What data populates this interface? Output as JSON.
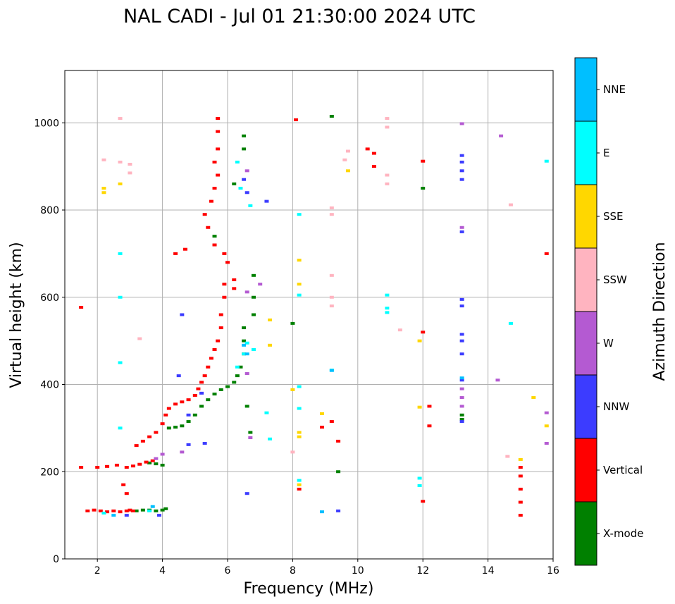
{
  "chart_data": {
    "type": "scatter",
    "title": "NAL CADI - Jul 01 21:30:00 2024 UTC",
    "xlabel": "Frequency (MHz)",
    "ylabel": "Virtual height (km)",
    "xlim": [
      1,
      16
    ],
    "ylim": [
      0,
      1120
    ],
    "xticks": [
      2,
      4,
      6,
      8,
      10,
      12,
      14,
      16
    ],
    "yticks": [
      0,
      200,
      400,
      600,
      800,
      1000
    ],
    "grid": true,
    "colorbar": {
      "label": "Azimuth Direction",
      "categories": [
        {
          "name": "X-mode",
          "color": "#008000"
        },
        {
          "name": "Vertical",
          "color": "#ff0000"
        },
        {
          "name": "NNW",
          "color": "#3c3cff"
        },
        {
          "name": "W",
          "color": "#b45ad2"
        },
        {
          "name": "SSW",
          "color": "#ffb4c0"
        },
        {
          "name": "SSE",
          "color": "#ffd700"
        },
        {
          "name": "E",
          "color": "#00ffff"
        },
        {
          "name": "NNE",
          "color": "#00bfff"
        }
      ]
    },
    "series": [
      {
        "name": "X-mode",
        "points": [
          [
            3.2,
            110
          ],
          [
            3.4,
            112
          ],
          [
            3.6,
            112
          ],
          [
            3.8,
            110
          ],
          [
            4.0,
            112
          ],
          [
            4.1,
            115
          ],
          [
            4.0,
            215
          ],
          [
            3.8,
            218
          ],
          [
            3.6,
            220
          ],
          [
            4.2,
            300
          ],
          [
            4.4,
            302
          ],
          [
            4.6,
            305
          ],
          [
            4.8,
            315
          ],
          [
            5.0,
            330
          ],
          [
            5.2,
            350
          ],
          [
            5.4,
            365
          ],
          [
            5.6,
            378
          ],
          [
            5.8,
            388
          ],
          [
            6.0,
            395
          ],
          [
            6.2,
            405
          ],
          [
            6.3,
            420
          ],
          [
            6.4,
            440
          ],
          [
            6.5,
            470
          ],
          [
            6.5,
            500
          ],
          [
            6.5,
            530
          ],
          [
            6.8,
            560
          ],
          [
            6.8,
            600
          ],
          [
            6.8,
            650
          ],
          [
            6.5,
            940
          ],
          [
            6.5,
            970
          ],
          [
            6.2,
            860
          ],
          [
            6.7,
            290
          ],
          [
            5.6,
            740
          ],
          [
            8.0,
            540
          ],
          [
            9.2,
            1015
          ],
          [
            9.4,
            200
          ],
          [
            12.0,
            850
          ],
          [
            13.2,
            320
          ],
          [
            13.2,
            330
          ],
          [
            6.6,
            350
          ]
        ]
      },
      {
        "name": "Vertical",
        "points": [
          [
            1.7,
            110
          ],
          [
            1.9,
            112
          ],
          [
            2.1,
            110
          ],
          [
            2.3,
            108
          ],
          [
            2.5,
            110
          ],
          [
            2.7,
            108
          ],
          [
            2.9,
            110
          ],
          [
            3.0,
            112
          ],
          [
            3.1,
            110
          ],
          [
            2.0,
            210
          ],
          [
            2.3,
            212
          ],
          [
            2.6,
            215
          ],
          [
            2.9,
            210
          ],
          [
            3.1,
            213
          ],
          [
            3.3,
            217
          ],
          [
            3.5,
            222
          ],
          [
            3.7,
            225
          ],
          [
            3.2,
            260
          ],
          [
            3.4,
            270
          ],
          [
            3.6,
            280
          ],
          [
            3.8,
            290
          ],
          [
            4.0,
            310
          ],
          [
            4.1,
            330
          ],
          [
            4.2,
            345
          ],
          [
            4.4,
            355
          ],
          [
            4.6,
            360
          ],
          [
            4.8,
            365
          ],
          [
            5.0,
            375
          ],
          [
            5.1,
            390
          ],
          [
            5.2,
            405
          ],
          [
            5.3,
            420
          ],
          [
            5.4,
            440
          ],
          [
            5.5,
            460
          ],
          [
            5.6,
            480
          ],
          [
            5.7,
            500
          ],
          [
            5.8,
            530
          ],
          [
            5.8,
            560
          ],
          [
            5.9,
            600
          ],
          [
            5.9,
            630
          ],
          [
            6.2,
            640
          ],
          [
            6.2,
            620
          ],
          [
            6.0,
            680
          ],
          [
            5.9,
            700
          ],
          [
            5.6,
            720
          ],
          [
            5.4,
            760
          ],
          [
            5.3,
            790
          ],
          [
            5.5,
            820
          ],
          [
            5.6,
            850
          ],
          [
            5.7,
            880
          ],
          [
            5.6,
            910
          ],
          [
            5.7,
            940
          ],
          [
            5.7,
            980
          ],
          [
            5.7,
            1010
          ],
          [
            4.7,
            710
          ],
          [
            4.4,
            700
          ],
          [
            10.5,
            900
          ],
          [
            10.5,
            930
          ],
          [
            10.3,
            940
          ],
          [
            8.1,
            1007
          ],
          [
            12.0,
            912
          ],
          [
            12.0,
            520
          ],
          [
            12.2,
            350
          ],
          [
            12.2,
            305
          ],
          [
            12.0,
            132
          ],
          [
            9.2,
            315
          ],
          [
            9.4,
            270
          ],
          [
            8.9,
            302
          ],
          [
            8.2,
            160
          ],
          [
            15.0,
            100
          ],
          [
            15.0,
            130
          ],
          [
            15.0,
            160
          ],
          [
            15.0,
            190
          ],
          [
            15.0,
            210
          ],
          [
            15.8,
            700
          ],
          [
            1.5,
            577
          ],
          [
            1.5,
            210
          ],
          [
            2.8,
            170
          ],
          [
            2.9,
            150
          ]
        ]
      },
      {
        "name": "NNW",
        "points": [
          [
            13.2,
            870
          ],
          [
            13.2,
            890
          ],
          [
            13.2,
            910
          ],
          [
            13.2,
            925
          ],
          [
            13.2,
            750
          ],
          [
            13.2,
            580
          ],
          [
            13.2,
            595
          ],
          [
            13.2,
            470
          ],
          [
            13.2,
            500
          ],
          [
            13.2,
            515
          ],
          [
            13.2,
            410
          ],
          [
            13.2,
            315
          ],
          [
            6.5,
            870
          ],
          [
            6.6,
            840
          ],
          [
            6.6,
            150
          ],
          [
            9.4,
            110
          ],
          [
            5.2,
            380
          ],
          [
            5.3,
            265
          ],
          [
            4.8,
            262
          ],
          [
            4.5,
            420
          ],
          [
            4.6,
            560
          ],
          [
            3.9,
            100
          ],
          [
            2.9,
            100
          ],
          [
            4.8,
            330
          ],
          [
            7.2,
            820
          ]
        ]
      },
      {
        "name": "W",
        "points": [
          [
            13.2,
            350
          ],
          [
            13.2,
            370
          ],
          [
            13.2,
            390
          ],
          [
            13.2,
            760
          ],
          [
            13.2,
            998
          ],
          [
            14.4,
            970
          ],
          [
            14.3,
            410
          ],
          [
            15.8,
            335
          ],
          [
            15.8,
            265
          ],
          [
            6.6,
            890
          ],
          [
            6.6,
            612
          ],
          [
            6.6,
            425
          ],
          [
            6.7,
            278
          ],
          [
            4.0,
            240
          ],
          [
            3.8,
            230
          ],
          [
            4.6,
            245
          ],
          [
            7.0,
            630
          ]
        ]
      },
      {
        "name": "SSW",
        "points": [
          [
            10.9,
            1010
          ],
          [
            10.9,
            990
          ],
          [
            10.9,
            880
          ],
          [
            10.9,
            860
          ],
          [
            14.7,
            812
          ],
          [
            14.6,
            235
          ],
          [
            9.2,
            805
          ],
          [
            9.2,
            790
          ],
          [
            9.2,
            650
          ],
          [
            9.2,
            600
          ],
          [
            9.2,
            580
          ],
          [
            9.7,
            935
          ],
          [
            9.6,
            915
          ],
          [
            11.3,
            525
          ],
          [
            3.0,
            905
          ],
          [
            3.0,
            885
          ],
          [
            2.7,
            1010
          ],
          [
            2.7,
            910
          ],
          [
            2.2,
            915
          ],
          [
            8.0,
            245
          ],
          [
            3.3,
            505
          ]
        ]
      },
      {
        "name": "SSE",
        "points": [
          [
            2.2,
            840
          ],
          [
            2.2,
            850
          ],
          [
            8.2,
            685
          ],
          [
            8.2,
            630
          ],
          [
            8.2,
            290
          ],
          [
            8.2,
            280
          ],
          [
            8.2,
            170
          ],
          [
            8.9,
            333
          ],
          [
            7.3,
            548
          ],
          [
            7.3,
            490
          ],
          [
            11.9,
            500
          ],
          [
            11.9,
            348
          ],
          [
            15.4,
            370
          ],
          [
            15.8,
            305
          ],
          [
            15.0,
            228
          ],
          [
            8.0,
            388
          ],
          [
            2.7,
            860
          ],
          [
            9.7,
            890
          ]
        ]
      },
      {
        "name": "E",
        "points": [
          [
            6.3,
            910
          ],
          [
            6.4,
            850
          ],
          [
            6.7,
            810
          ],
          [
            6.5,
            470
          ],
          [
            6.3,
            440
          ],
          [
            6.6,
            495
          ],
          [
            6.8,
            480
          ],
          [
            8.2,
            790
          ],
          [
            8.2,
            605
          ],
          [
            8.2,
            395
          ],
          [
            8.2,
            345
          ],
          [
            8.2,
            180
          ],
          [
            10.9,
            605
          ],
          [
            10.9,
            575
          ],
          [
            10.9,
            565
          ],
          [
            11.9,
            185
          ],
          [
            11.9,
            168
          ],
          [
            15.8,
            912
          ],
          [
            14.7,
            540
          ],
          [
            7.2,
            335
          ],
          [
            7.3,
            275
          ],
          [
            2.2,
            105
          ],
          [
            3.6,
            110
          ],
          [
            2.7,
            700
          ],
          [
            2.7,
            600
          ],
          [
            2.7,
            450
          ],
          [
            2.7,
            300
          ],
          [
            9.2,
            433
          ]
        ]
      },
      {
        "name": "NNE",
        "points": [
          [
            6.5,
            490
          ],
          [
            6.6,
            470
          ],
          [
            8.9,
            108
          ],
          [
            9.2,
            432
          ],
          [
            13.2,
            415
          ],
          [
            2.5,
            100
          ],
          [
            3.7,
            120
          ]
        ]
      }
    ]
  }
}
